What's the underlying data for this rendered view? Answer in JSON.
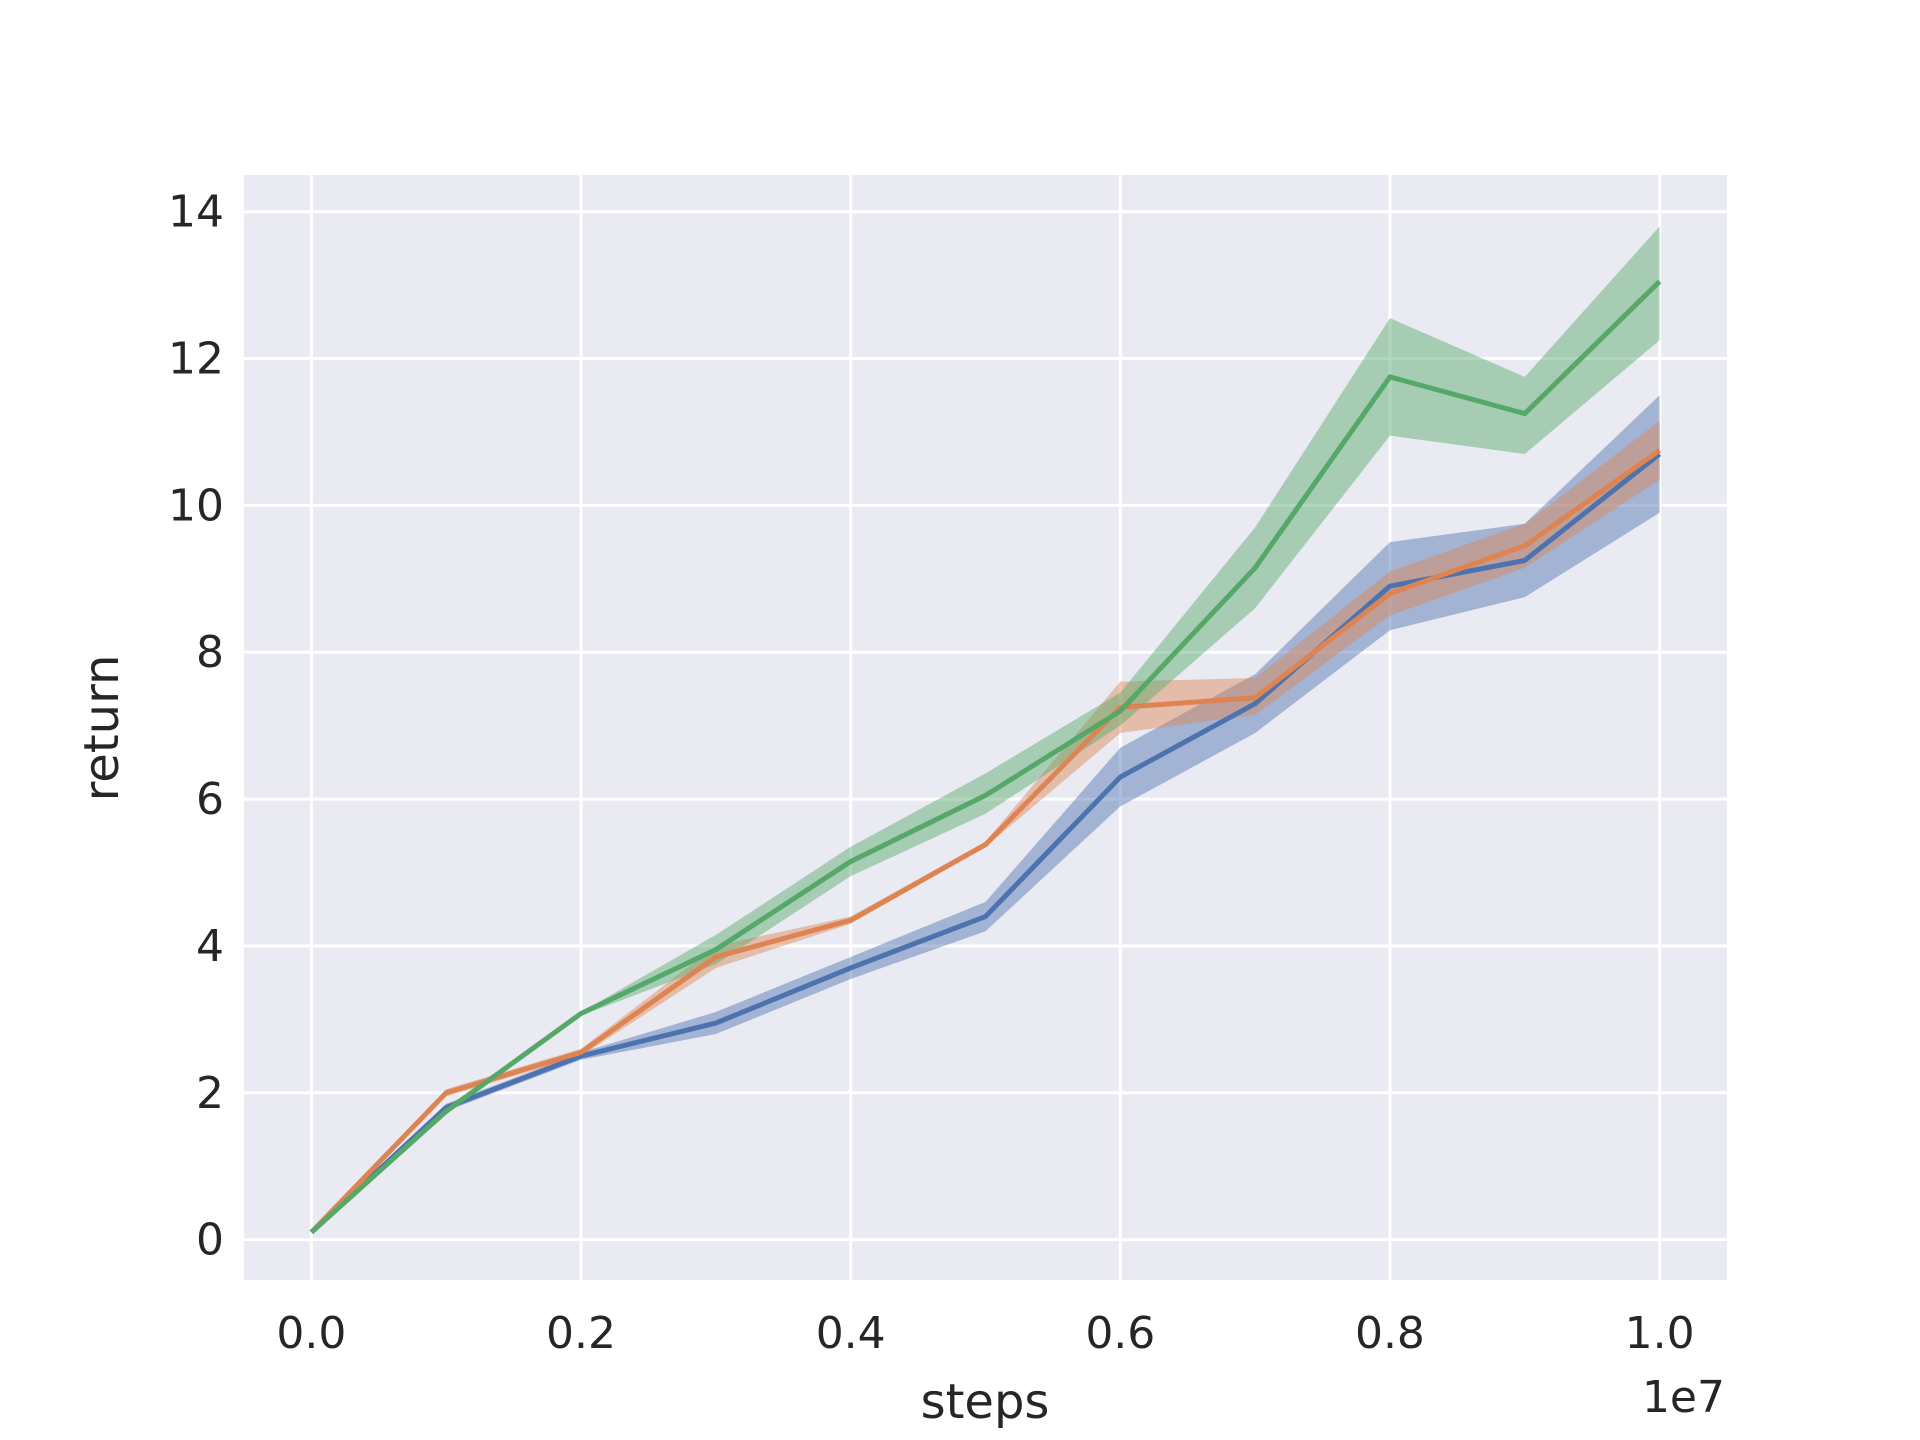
{
  "chart_data": {
    "type": "line",
    "x_label": "steps",
    "y_label": "return",
    "x_offset_label": "1e7",
    "x": [
      0,
      0.1,
      0.2,
      0.3,
      0.4,
      0.5,
      0.6,
      0.7,
      0.8,
      0.9,
      1.0
    ],
    "xlim": [
      -0.05,
      1.05
    ],
    "ylim": [
      -0.55,
      14.5
    ],
    "xticks": [
      {
        "value": 0,
        "label": "0.0"
      },
      0.2,
      0.4,
      0.6,
      0.8,
      {
        "value": 1,
        "label": "1.0"
      }
    ],
    "yticks": [
      0,
      2,
      4,
      6,
      8,
      10,
      12,
      14
    ],
    "grid": true,
    "background": "#eaeaf2",
    "series": [
      {
        "color": "#4c72b0",
        "values": [
          0.1,
          1.8,
          2.5,
          2.95,
          3.7,
          4.4,
          6.3,
          7.3,
          8.9,
          9.25,
          10.7
        ],
        "lower": [
          0.1,
          1.75,
          2.45,
          2.8,
          3.55,
          4.2,
          5.9,
          6.9,
          8.3,
          8.75,
          9.9
        ],
        "upper": [
          0.1,
          1.85,
          2.55,
          3.1,
          3.85,
          4.6,
          6.7,
          7.7,
          9.5,
          9.75,
          11.5
        ]
      },
      {
        "color": "#dd8452",
        "values": [
          0.1,
          2.0,
          2.55,
          3.85,
          4.35,
          5.38,
          7.25,
          7.38,
          8.8,
          9.45,
          10.75
        ],
        "lower": [
          0.1,
          1.95,
          2.5,
          3.7,
          4.3,
          5.35,
          6.9,
          7.15,
          8.5,
          9.15,
          10.35
        ],
        "upper": [
          0.1,
          2.05,
          2.6,
          4.0,
          4.4,
          5.42,
          7.6,
          7.65,
          9.1,
          9.75,
          11.15
        ]
      },
      {
        "color": "#55a868",
        "values": [
          0.1,
          1.75,
          3.08,
          3.95,
          5.15,
          6.05,
          7.2,
          9.15,
          11.75,
          11.25,
          13.05
        ],
        "lower": [
          0.1,
          1.7,
          3.05,
          3.75,
          4.95,
          5.8,
          7.0,
          8.6,
          10.95,
          10.7,
          12.25
        ],
        "upper": [
          0.1,
          1.8,
          3.1,
          4.15,
          5.35,
          6.35,
          7.45,
          9.7,
          12.55,
          11.75,
          13.8
        ]
      }
    ]
  }
}
